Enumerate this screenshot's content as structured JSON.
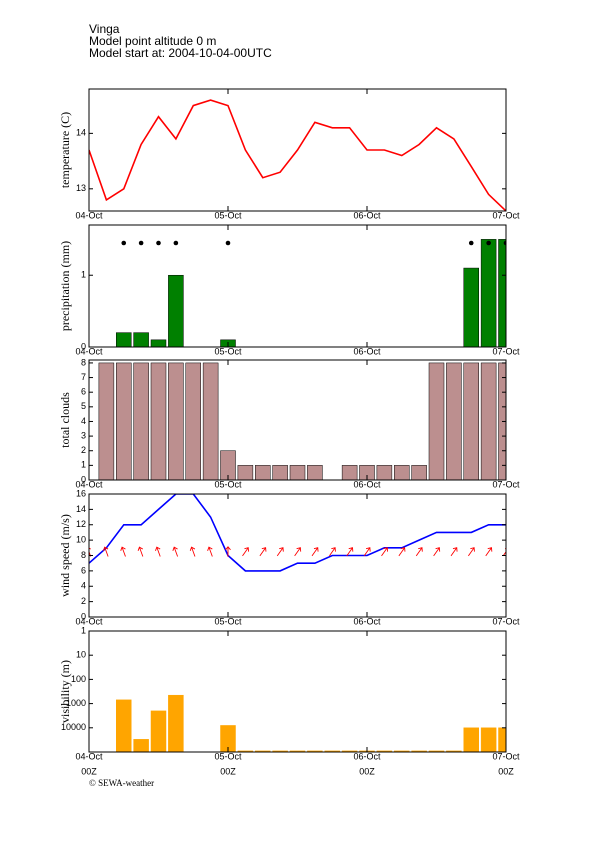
{
  "header": {
    "station": "Vinga",
    "altitude": "Model point altitude  0 m",
    "start": "Model start at: 2004-10-04-00UTC"
  },
  "footer": "© SEWA-weather",
  "chart_data": [
    {
      "type": "line",
      "ylabel": "temperature (C)",
      "color": "#ff0000",
      "x": [
        0,
        3,
        6,
        9,
        12,
        15,
        18,
        21,
        24,
        27,
        30,
        33,
        36,
        39,
        42,
        45,
        48,
        51,
        54,
        57,
        60,
        63,
        66,
        69,
        72
      ],
      "values": [
        13.7,
        12.8,
        13.0,
        13.8,
        14.3,
        13.9,
        14.5,
        14.6,
        14.5,
        13.7,
        13.2,
        13.3,
        13.7,
        14.2,
        14.1,
        14.1,
        13.7,
        13.7,
        13.6,
        13.8,
        14.1,
        13.9,
        13.4,
        12.9,
        12.6
      ],
      "xlim": [
        0,
        72
      ],
      "xticks": [
        {
          "value": 0,
          "label": "04-Oct"
        },
        {
          "value": 24,
          "label": "05-Oct"
        },
        {
          "value": 48,
          "label": "06-Oct"
        },
        {
          "value": 72,
          "label": "07-Oct"
        }
      ],
      "ylim": [
        12.6,
        14.8
      ],
      "yticks": [
        13,
        14
      ]
    },
    {
      "type": "bar",
      "ylabel": "precipitation (mm)",
      "color": "#008000",
      "indicator_color": "#000000",
      "x": [
        0,
        3,
        6,
        9,
        12,
        15,
        18,
        21,
        24,
        27,
        30,
        33,
        36,
        39,
        42,
        45,
        48,
        51,
        54,
        57,
        60,
        63,
        66,
        69,
        72
      ],
      "values": [
        0,
        0,
        0.2,
        0.2,
        0.1,
        1.0,
        0,
        0,
        0.1,
        0,
        0,
        0,
        0,
        0,
        0,
        0,
        0,
        0,
        0,
        0,
        0,
        0,
        1.1,
        1.5,
        1.5
      ],
      "xlim": [
        0,
        72
      ],
      "xticks": [
        {
          "value": 0,
          "label": "04-Oct"
        },
        {
          "value": 24,
          "label": "05-Oct"
        },
        {
          "value": 48,
          "label": "06-Oct"
        },
        {
          "value": 72,
          "label": "07-Oct"
        }
      ],
      "ylim": [
        0,
        1.7
      ],
      "yticks": [
        0,
        1
      ]
    },
    {
      "type": "bar",
      "ylabel": "total clouds",
      "color": "#bc8f8f",
      "x": [
        0,
        3,
        6,
        9,
        12,
        15,
        18,
        21,
        24,
        27,
        30,
        33,
        36,
        39,
        42,
        45,
        48,
        51,
        54,
        57,
        60,
        63,
        66,
        69,
        72
      ],
      "values": [
        null,
        8,
        8,
        8,
        8,
        8,
        8,
        8,
        2,
        1,
        1,
        1,
        1,
        1,
        0,
        1,
        1,
        1,
        1,
        1,
        8,
        8,
        8,
        8,
        8
      ],
      "xlim": [
        0,
        72
      ],
      "xticks": [
        {
          "value": 0,
          "label": "04-Oct"
        },
        {
          "value": 24,
          "label": "05-Oct"
        },
        {
          "value": 48,
          "label": "06-Oct"
        },
        {
          "value": 72,
          "label": "07-Oct"
        }
      ],
      "ylim": [
        0,
        8.2
      ],
      "yticks": [
        0,
        1,
        2,
        3,
        4,
        5,
        6,
        7,
        8
      ]
    },
    {
      "type": "line",
      "ylabel": "wind speed (m/s)",
      "color": "#0000ff",
      "arrow_color": "#ff0000",
      "x": [
        0,
        3,
        6,
        9,
        12,
        15,
        18,
        21,
        24,
        27,
        30,
        33,
        36,
        39,
        42,
        45,
        48,
        51,
        54,
        57,
        60,
        63,
        66,
        69,
        72
      ],
      "values": [
        7,
        9,
        12,
        12,
        14,
        16,
        16,
        13,
        8,
        6,
        6,
        6,
        7,
        7,
        8,
        8,
        8,
        9,
        9,
        10,
        11,
        11,
        11,
        12,
        12
      ],
      "wind_direction": [
        160,
        160,
        160,
        160,
        160,
        160,
        160,
        160,
        180,
        215,
        215,
        215,
        215,
        215,
        215,
        215,
        215,
        215,
        215,
        215,
        215,
        215,
        215,
        215,
        215
      ],
      "xlim": [
        0,
        72
      ],
      "xticks": [
        {
          "value": 0,
          "label": "04-Oct"
        },
        {
          "value": 24,
          "label": "05-Oct"
        },
        {
          "value": 48,
          "label": "06-Oct"
        },
        {
          "value": 72,
          "label": "07-Oct"
        }
      ],
      "ylim": [
        0,
        16
      ],
      "yticks": [
        0,
        2,
        4,
        6,
        8,
        10,
        12,
        14,
        16
      ]
    },
    {
      "type": "bar",
      "ylabel": "visibility (m)",
      "color": "#ffa500",
      "log_scale": true,
      "x": [
        0,
        3,
        6,
        9,
        12,
        15,
        18,
        21,
        24,
        27,
        30,
        33,
        36,
        39,
        42,
        45,
        48,
        51,
        54,
        57,
        60,
        63,
        66,
        69,
        72
      ],
      "values": [
        null,
        null,
        700,
        30000,
        2000,
        450,
        null,
        null,
        8000,
        90000,
        90000,
        90000,
        90000,
        90000,
        90000,
        90000,
        90000,
        90000,
        90000,
        90000,
        90000,
        90000,
        10000,
        10000,
        10000
      ],
      "xlim": [
        0,
        72
      ],
      "xticks": [
        {
          "value": 0,
          "label": "04-Oct"
        },
        {
          "value": 24,
          "label": "05-Oct"
        },
        {
          "value": 48,
          "label": "06-Oct"
        },
        {
          "value": 72,
          "label": "07-Oct"
        }
      ],
      "xticks_second_row": [
        "00Z",
        "00Z",
        "00Z",
        "00Z"
      ],
      "ylim": [
        100000,
        1
      ],
      "yticks": [
        1,
        10,
        100,
        1000,
        10000
      ]
    }
  ]
}
